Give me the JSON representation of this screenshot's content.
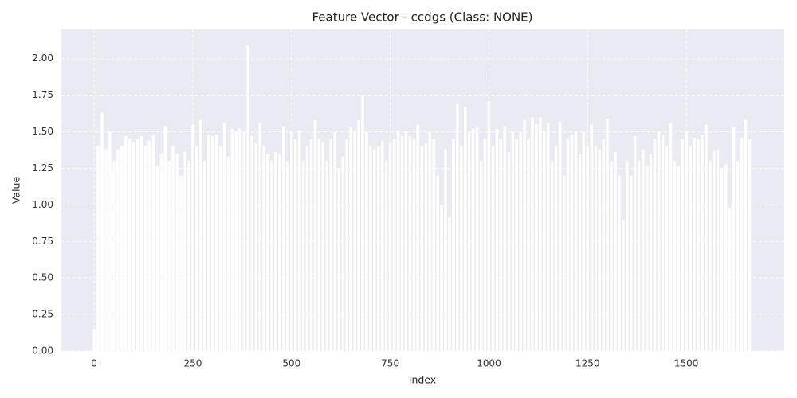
{
  "chart_data": {
    "type": "bar",
    "title": "Feature Vector - ccdgs (Class: NONE)",
    "xlabel": "Index",
    "ylabel": "Value",
    "color": "#ffffff",
    "grid": true,
    "xlim": [
      -83,
      1748
    ],
    "ylim": [
      0,
      2.2
    ],
    "xticks": [
      0,
      250,
      500,
      750,
      1000,
      1250,
      1500
    ],
    "yticks": [
      {
        "value": 0,
        "label": "0.00"
      },
      {
        "value": 0.25,
        "label": "0.25"
      },
      {
        "value": 0.5,
        "label": "0.50"
      },
      {
        "value": 0.75,
        "label": "0.75"
      },
      {
        "value": 1,
        "label": "1.00"
      },
      {
        "value": 1.25,
        "label": "1.25"
      },
      {
        "value": 1.5,
        "label": "1.50"
      },
      {
        "value": 1.75,
        "label": "1.75"
      },
      {
        "value": 2,
        "label": "2.00"
      }
    ],
    "x": [
      0,
      10,
      20,
      30,
      40,
      50,
      60,
      70,
      80,
      90,
      100,
      110,
      120,
      130,
      140,
      150,
      160,
      170,
      180,
      190,
      200,
      210,
      220,
      230,
      240,
      250,
      260,
      270,
      280,
      290,
      300,
      310,
      320,
      330,
      340,
      350,
      360,
      370,
      380,
      390,
      400,
      410,
      420,
      430,
      440,
      450,
      460,
      470,
      480,
      490,
      500,
      510,
      520,
      530,
      540,
      550,
      560,
      570,
      580,
      590,
      600,
      610,
      620,
      630,
      640,
      650,
      660,
      670,
      680,
      690,
      700,
      710,
      720,
      730,
      740,
      750,
      760,
      770,
      780,
      790,
      800,
      810,
      820,
      830,
      840,
      850,
      860,
      870,
      880,
      890,
      900,
      910,
      920,
      930,
      940,
      950,
      960,
      970,
      980,
      990,
      1000,
      1010,
      1020,
      1030,
      1040,
      1050,
      1060,
      1070,
      1080,
      1090,
      1100,
      1110,
      1120,
      1130,
      1140,
      1150,
      1160,
      1170,
      1180,
      1190,
      1200,
      1210,
      1220,
      1230,
      1240,
      1250,
      1260,
      1270,
      1280,
      1290,
      1300,
      1310,
      1320,
      1330,
      1340,
      1350,
      1360,
      1370,
      1380,
      1390,
      1400,
      1410,
      1420,
      1430,
      1440,
      1450,
      1460,
      1470,
      1480,
      1490,
      1500,
      1510,
      1520,
      1530,
      1540,
      1550,
      1560,
      1570,
      1580,
      1590,
      1600,
      1610,
      1620,
      1630,
      1640,
      1650,
      1660
    ],
    "values": [
      0.15,
      1.4,
      1.63,
      1.38,
      1.5,
      1.3,
      1.38,
      1.4,
      1.47,
      1.45,
      1.43,
      1.45,
      1.47,
      1.4,
      1.44,
      1.48,
      1.27,
      1.35,
      1.54,
      1.3,
      1.4,
      1.35,
      1.2,
      1.36,
      1.3,
      1.55,
      1.4,
      1.58,
      1.3,
      1.48,
      1.47,
      1.48,
      1.4,
      1.56,
      1.33,
      1.52,
      1.5,
      1.52,
      1.5,
      2.09,
      1.47,
      1.42,
      1.56,
      1.4,
      1.35,
      1.3,
      1.36,
      1.35,
      1.54,
      1.3,
      1.5,
      1.45,
      1.51,
      1.3,
      1.4,
      1.45,
      1.58,
      1.45,
      1.43,
      1.3,
      1.45,
      1.5,
      1.25,
      1.33,
      1.45,
      1.53,
      1.5,
      1.58,
      1.75,
      1.5,
      1.4,
      1.38,
      1.4,
      1.44,
      1.3,
      1.42,
      1.45,
      1.51,
      1.47,
      1.5,
      1.47,
      1.45,
      1.55,
      1.4,
      1.42,
      1.5,
      1.45,
      1.2,
      1.0,
      1.38,
      0.92,
      1.45,
      1.69,
      1.4,
      1.67,
      1.5,
      1.52,
      1.53,
      1.3,
      1.45,
      1.71,
      1.4,
      1.52,
      1.45,
      1.54,
      1.36,
      1.5,
      1.45,
      1.5,
      1.58,
      1.45,
      1.6,
      1.55,
      1.6,
      1.5,
      1.56,
      1.3,
      1.4,
      1.57,
      1.2,
      1.45,
      1.48,
      1.5,
      1.35,
      1.5,
      1.4,
      1.55,
      1.4,
      1.38,
      1.45,
      1.59,
      1.3,
      1.36,
      1.2,
      0.9,
      1.3,
      1.2,
      1.47,
      1.3,
      1.38,
      1.27,
      1.35,
      1.45,
      1.5,
      1.48,
      1.4,
      1.56,
      1.3,
      1.27,
      1.45,
      1.5,
      1.4,
      1.46,
      1.45,
      1.48,
      1.55,
      1.3,
      1.37,
      1.38,
      1.25,
      1.28,
      0.98,
      1.53,
      1.3,
      1.46,
      1.58,
      1.45
    ]
  }
}
